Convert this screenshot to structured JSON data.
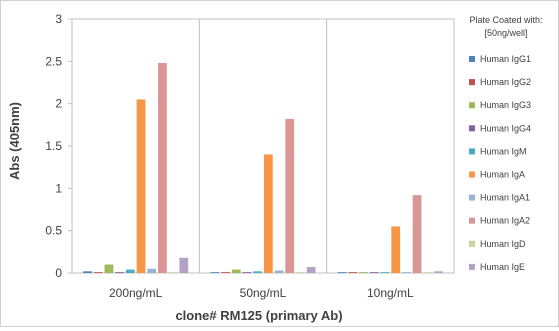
{
  "chart_data": {
    "type": "bar",
    "categories": [
      "200ng/mL",
      "50ng/mL",
      "10ng/mL"
    ],
    "xlabel": "clone# RM125 (primary Ab)",
    "ylabel": "Abs (405nm)",
    "ylim": [
      0,
      3
    ],
    "yticks": [
      "0",
      "0.5",
      "1",
      "1.5",
      "2",
      "2.5",
      "3"
    ],
    "grid": false,
    "legend": {
      "title_line1": "Plate Coated with:",
      "title_line2": "[50ng/well]",
      "placement": "right"
    },
    "series": [
      {
        "name": "Human IgG1",
        "color": "#4f81bd",
        "values": [
          0.02,
          0.01,
          0.01
        ]
      },
      {
        "name": "Human IgG2",
        "color": "#c0504d",
        "values": [
          0.01,
          0.01,
          0.01
        ]
      },
      {
        "name": "Human IgG3",
        "color": "#9bbb59",
        "values": [
          0.1,
          0.04,
          0.01
        ]
      },
      {
        "name": "Human IgG4",
        "color": "#8064a2",
        "values": [
          0.01,
          0.01,
          0.01
        ]
      },
      {
        "name": "Human IgM",
        "color": "#4bacc6",
        "values": [
          0.04,
          0.02,
          0.01
        ]
      },
      {
        "name": "Human IgA",
        "color": "#f79646",
        "values": [
          2.05,
          1.4,
          0.55
        ]
      },
      {
        "name": "Human IgA1",
        "color": "#95b3d7",
        "values": [
          0.05,
          0.03,
          0.01
        ]
      },
      {
        "name": "Human IgA2",
        "color": "#d99694",
        "values": [
          2.48,
          1.82,
          0.92
        ]
      },
      {
        "name": "Human IgD",
        "color": "#c3d69b",
        "values": [
          0.01,
          0.01,
          0.01
        ]
      },
      {
        "name": "Human IgE",
        "color": "#b2a2c7",
        "values": [
          0.18,
          0.07,
          0.02
        ]
      }
    ]
  }
}
